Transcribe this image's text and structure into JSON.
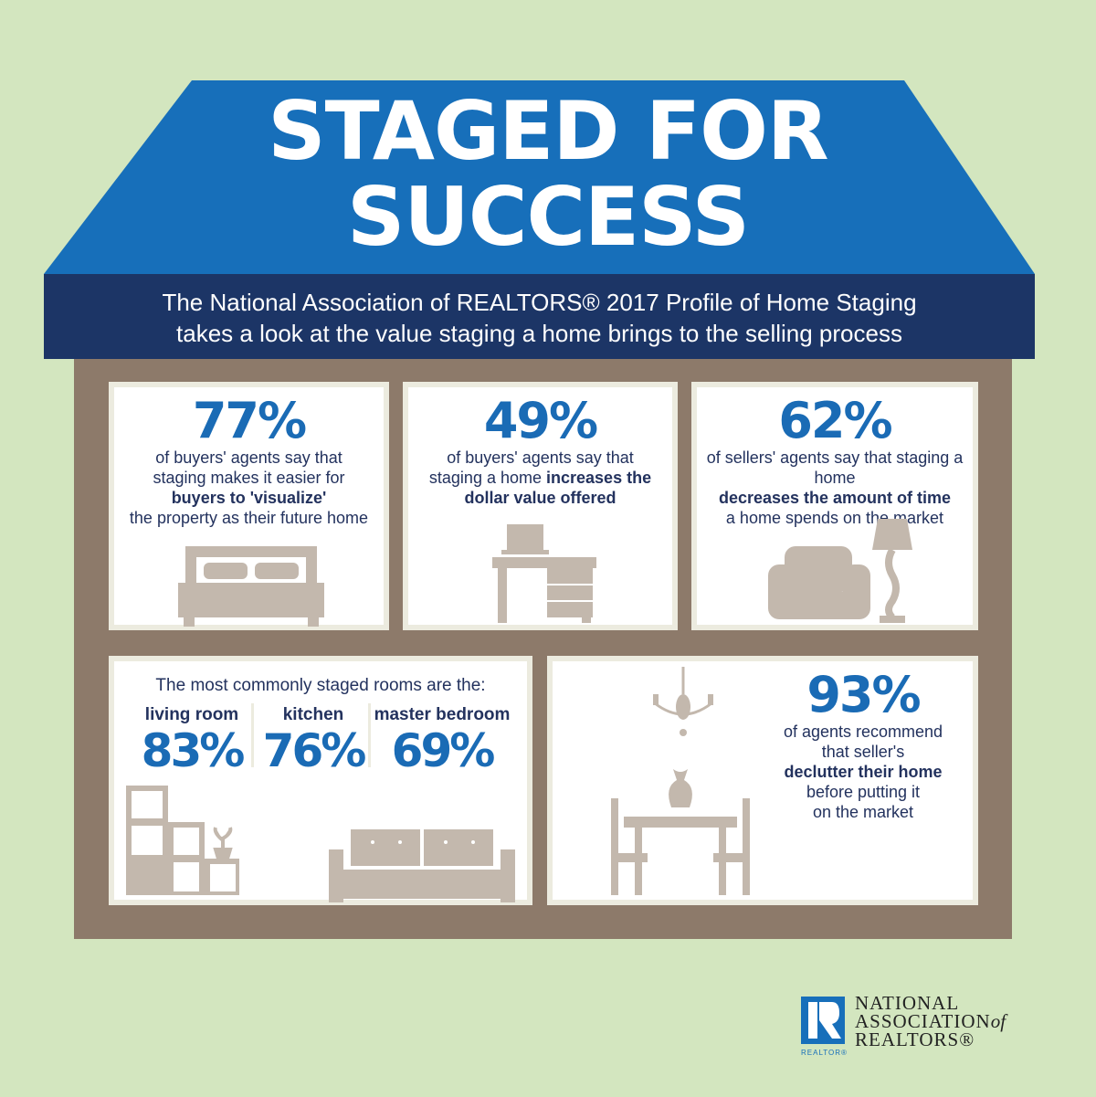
{
  "header": {
    "title_line1": "STAGED FOR",
    "title_line2": "SUCCESS",
    "subtitle_line1": "The National Association of REALTORS® 2017 Profile of Home Staging",
    "subtitle_line2": "takes a look at the value staging a home brings to the selling process"
  },
  "stats": [
    {
      "percent": "77%",
      "line1": "of buyers' agents say that",
      "line2": "staging makes it easier for",
      "bold": "buyers to 'visualize'",
      "line3": "the property as their future home",
      "icon": "bed-icon"
    },
    {
      "percent": "49%",
      "line1": "of buyers' agents say that",
      "line2": "staging a home",
      "bold": "increases the",
      "bold2": "dollar value offered",
      "icon": "desk-icon"
    },
    {
      "percent": "62%",
      "line1": "of sellers' agents say that staging a home",
      "bold": "decreases the amount of time",
      "line3": "a home spends on the market",
      "icon": "armchair-lamp-icon"
    }
  ],
  "rooms": {
    "heading": "The most commonly staged rooms are the:",
    "items": [
      {
        "label": "living room",
        "percent": "83%"
      },
      {
        "label": "kitchen",
        "percent": "76%"
      },
      {
        "label": "master bedroom",
        "percent": "69%"
      }
    ]
  },
  "declutter": {
    "percent": "93%",
    "line1": "of agents recommend",
    "line2": "that seller's",
    "bold": "declutter their home",
    "line3": "before putting it",
    "line4": "on the market"
  },
  "logo": {
    "badge_text": "REALTOR®",
    "line1": "NATIONAL",
    "line2": "ASSOCIATION",
    "line2_of": "of",
    "line3": "REALTORS®"
  },
  "colors": {
    "background": "#d3e6bf",
    "roof": "#176fba",
    "banner": "#1c3566",
    "walls": "#8d7a6a",
    "accent": "#1a6bb5",
    "furniture": "#c3b8ad"
  }
}
